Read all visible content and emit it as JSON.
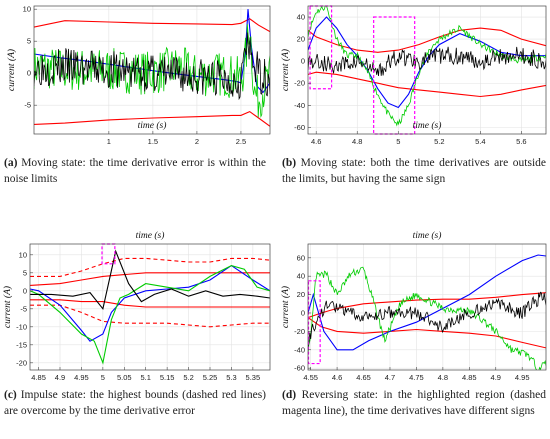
{
  "chart_data": [
    {
      "type": "line",
      "panel_id": "a",
      "caption_tag": "(a)",
      "caption": "Moving state: the time derivative error is within the noise limits",
      "xlabel": "time (s)",
      "ylabel": "current (A)",
      "xlim": [
        0.15,
        2.83
      ],
      "ylim": [
        -9.5,
        10.5
      ],
      "xticks": [
        1,
        1.5,
        2,
        2.5
      ],
      "xtick_labels": [
        "1",
        "1.5",
        "2",
        "2.5"
      ],
      "yticks": [
        -5,
        0,
        5,
        10
      ],
      "ytick_labels": [
        "-5",
        "0",
        "5",
        "10"
      ],
      "xlabel_pos": "inside-top",
      "grid": true,
      "series": [
        {
          "color": "#ff0000",
          "style": "solid",
          "x": [
            0.15,
            0.5,
            1.0,
            1.5,
            2.0,
            2.4,
            2.5,
            2.6,
            2.7,
            2.83
          ],
          "y": [
            7.2,
            8.2,
            8.0,
            7.8,
            7.7,
            7.6,
            7.8,
            8.5,
            7.5,
            6.5
          ]
        },
        {
          "color": "#ff0000",
          "style": "solid",
          "x": [
            0.15,
            0.5,
            1.0,
            1.5,
            2.0,
            2.4,
            2.5,
            2.6,
            2.7,
            2.83
          ],
          "y": [
            -8.0,
            -7.8,
            -7.3,
            -7.0,
            -6.8,
            -6.6,
            -6.6,
            -6.0,
            -7.0,
            -8.3
          ]
        },
        {
          "color": "#0000ff",
          "style": "solid",
          "x": [
            0.15,
            0.4,
            0.8,
            1.2,
            1.6,
            2.0,
            2.3,
            2.45,
            2.5,
            2.55,
            2.58,
            2.62,
            2.68,
            2.75,
            2.83
          ],
          "y": [
            3.0,
            2.5,
            1.8,
            1.0,
            0.2,
            -0.5,
            -1.0,
            -1.3,
            -1.5,
            3.0,
            10.0,
            4.0,
            -2.0,
            -3.0,
            -1.5
          ]
        },
        {
          "color": "#00cc00",
          "style": "solid",
          "noise_amp": 3.5,
          "seed": 7,
          "x": [
            0.15,
            0.5,
            1.0,
            1.5,
            1.8,
            2.0,
            2.2,
            2.4,
            2.5,
            2.55,
            2.6,
            2.65,
            2.7,
            2.83
          ],
          "y": [
            1.0,
            0.5,
            0.5,
            0.0,
            1.0,
            -0.5,
            0.0,
            -0.5,
            -1.0,
            2.0,
            8.0,
            -3.0,
            -4.0,
            -0.5
          ]
        },
        {
          "color": "#000000",
          "style": "solid",
          "noise_amp": 3.0,
          "seed": 3,
          "x": [
            0.15,
            0.5,
            1.0,
            1.5,
            2.0,
            2.4,
            2.5,
            2.55,
            2.6,
            2.7,
            2.83
          ],
          "y": [
            1.0,
            1.0,
            0.5,
            0.0,
            -0.5,
            -1.0,
            -1.0,
            4.0,
            3.0,
            0.0,
            -1.0
          ]
        }
      ],
      "highlights": []
    },
    {
      "type": "line",
      "panel_id": "b",
      "caption_tag": "(b)",
      "caption": "Moving state: both the time derivatives are outside the limits, but having the same sign",
      "xlabel": "time (s)",
      "ylabel": "current (A)",
      "xlim": [
        4.56,
        5.72
      ],
      "ylim": [
        -66,
        50
      ],
      "xticks": [
        4.6,
        4.8,
        5.0,
        5.2,
        5.4,
        5.6
      ],
      "xtick_labels": [
        "4.6",
        "4.8",
        "5",
        "5.2",
        "5.4",
        "5.6"
      ],
      "yticks": [
        -60,
        -40,
        -20,
        0,
        20,
        40
      ],
      "ytick_labels": [
        "-60",
        "-40",
        "-20",
        "0",
        "20",
        "40"
      ],
      "xlabel_pos": "inside-top",
      "grid": true,
      "series": [
        {
          "color": "#ff0000",
          "style": "solid",
          "x": [
            4.56,
            4.6,
            4.7,
            4.8,
            4.9,
            5.0,
            5.1,
            5.2,
            5.3,
            5.4,
            5.5,
            5.6,
            5.72
          ],
          "y": [
            28,
            22,
            15,
            10,
            8,
            10,
            15,
            22,
            28,
            30,
            28,
            20,
            14
          ]
        },
        {
          "color": "#ff0000",
          "style": "solid",
          "x": [
            4.56,
            4.6,
            4.7,
            4.8,
            4.9,
            5.0,
            5.1,
            5.2,
            5.3,
            5.4,
            5.5,
            5.6,
            5.72
          ],
          "y": [
            -12,
            -10,
            -12,
            -16,
            -20,
            -24,
            -26,
            -28,
            -30,
            -32,
            -30,
            -26,
            -22
          ]
        },
        {
          "color": "#0000ff",
          "style": "solid",
          "x": [
            4.56,
            4.6,
            4.65,
            4.7,
            4.75,
            4.8,
            4.85,
            4.9,
            4.95,
            5.0,
            5.05,
            5.1,
            5.15,
            5.2,
            5.3,
            5.4,
            5.5,
            5.6,
            5.72
          ],
          "y": [
            10,
            30,
            40,
            30,
            15,
            5,
            -8,
            -25,
            -38,
            -42,
            -30,
            -10,
            5,
            15,
            25,
            18,
            8,
            5,
            5
          ]
        },
        {
          "color": "#00cc00",
          "style": "solid",
          "noise_amp": 3.0,
          "seed": 11,
          "x": [
            4.56,
            4.6,
            4.65,
            4.7,
            4.75,
            4.8,
            4.85,
            4.9,
            4.95,
            5.0,
            5.05,
            5.1,
            5.15,
            5.2,
            5.3,
            5.4,
            5.5,
            5.6,
            5.72
          ],
          "y": [
            25,
            45,
            50,
            20,
            5,
            5,
            -10,
            -30,
            -48,
            -58,
            -40,
            -10,
            10,
            20,
            30,
            15,
            5,
            0,
            5
          ]
        },
        {
          "color": "#000000",
          "style": "solid",
          "noise_amp": 8.0,
          "seed": 5,
          "x": [
            4.56,
            4.6,
            4.7,
            4.8,
            4.9,
            5.0,
            5.1,
            5.2,
            5.3,
            5.4,
            5.5,
            5.6,
            5.72
          ],
          "y": [
            0,
            0,
            -5,
            0,
            -10,
            5,
            0,
            5,
            5,
            0,
            5,
            5,
            0
          ]
        }
      ],
      "highlights": [
        {
          "x0": 4.57,
          "x1": 4.675,
          "y0": -25,
          "y1": 50
        },
        {
          "x0": 4.88,
          "x1": 5.08,
          "y0": -66,
          "y1": 40
        }
      ]
    },
    {
      "type": "line",
      "panel_id": "c",
      "caption_tag": "(c)",
      "caption": "Impulse state: the highest bounds (dashed red lines) are overcome by the time derivative error",
      "xlabel": "time (s)",
      "ylabel": "current (A)",
      "xlim": [
        4.83,
        5.39
      ],
      "ylim": [
        -22,
        13
      ],
      "xticks": [
        4.85,
        4.9,
        4.95,
        5.0,
        5.05,
        5.1,
        5.15,
        5.2,
        5.25,
        5.3,
        5.35
      ],
      "xtick_labels": [
        "4.85",
        "4.9",
        "4.95",
        "5",
        "5.05",
        "5.1",
        "5.15",
        "5.2",
        "5.25",
        "5.3",
        "5.35"
      ],
      "yticks": [
        -20,
        -15,
        -10,
        -5,
        0,
        5,
        10
      ],
      "ytick_labels": [
        "-20",
        "-15",
        "-10",
        "-5",
        "0",
        "5",
        "10"
      ],
      "xlabel_pos": "above",
      "grid": true,
      "series": [
        {
          "color": "#ff0000",
          "style": "dashed",
          "x": [
            4.83,
            4.9,
            4.95,
            5.0,
            5.05,
            5.1,
            5.15,
            5.2,
            5.25,
            5.3,
            5.35,
            5.39
          ],
          "y": [
            4.0,
            4.0,
            5.5,
            7.5,
            9.0,
            9.0,
            8.5,
            8.0,
            8.0,
            9.0,
            9.0,
            8.5
          ]
        },
        {
          "color": "#ff0000",
          "style": "dashed",
          "x": [
            4.83,
            4.9,
            4.95,
            5.0,
            5.05,
            5.1,
            5.15,
            5.2,
            5.25,
            5.3,
            5.35,
            5.39
          ],
          "y": [
            -4.0,
            -4.0,
            -6.0,
            -8.5,
            -9.0,
            -9.0,
            -9.0,
            -9.5,
            -10.0,
            -9.5,
            -9.0,
            -9.0
          ]
        },
        {
          "color": "#ff0000",
          "style": "solid",
          "x": [
            4.83,
            4.9,
            4.95,
            5.0,
            5.05,
            5.1,
            5.2,
            5.3,
            5.39
          ],
          "y": [
            1.5,
            2.0,
            3.0,
            4.0,
            4.5,
            5.0,
            5.0,
            5.0,
            5.0
          ]
        },
        {
          "color": "#ff0000",
          "style": "solid",
          "x": [
            4.83,
            4.9,
            4.95,
            5.0,
            5.05,
            5.1,
            5.2,
            5.3,
            5.39
          ],
          "y": [
            -2.5,
            -2.5,
            -3.0,
            -3.0,
            -4.0,
            -4.5,
            -4.5,
            -4.5,
            -4.5
          ]
        },
        {
          "color": "#0000ff",
          "style": "solid",
          "x": [
            4.83,
            4.85,
            4.9,
            4.95,
            4.97,
            5.0,
            5.02,
            5.05,
            5.1,
            5.15,
            5.2,
            5.25,
            5.3,
            5.35,
            5.39
          ],
          "y": [
            0.5,
            0.0,
            -4.0,
            -11.0,
            -14.0,
            -12.0,
            -6.0,
            -2.0,
            0.0,
            0.5,
            1.0,
            3.0,
            7.0,
            3.0,
            0.0
          ]
        },
        {
          "color": "#00cc00",
          "style": "solid",
          "x": [
            4.83,
            4.85,
            4.9,
            4.95,
            4.98,
            5.0,
            5.02,
            5.04,
            5.06,
            5.1,
            5.15,
            5.2,
            5.25,
            5.3,
            5.33,
            5.36,
            5.39
          ],
          "y": [
            0.0,
            -1.0,
            -6.0,
            -12.0,
            -14.0,
            -20.0,
            -8.0,
            -2.0,
            -1.0,
            2.0,
            1.0,
            0.0,
            4.0,
            7.0,
            6.0,
            1.0,
            0.0
          ]
        },
        {
          "color": "#000000",
          "style": "solid",
          "x": [
            4.83,
            4.88,
            4.93,
            4.97,
            5.0,
            5.03,
            5.06,
            5.09,
            5.12,
            5.16,
            5.2,
            5.24,
            5.28,
            5.32,
            5.36,
            5.39
          ],
          "y": [
            -1.0,
            -1.0,
            -1.5,
            -0.5,
            -5.0,
            11.0,
            2.0,
            -3.0,
            -1.0,
            0.5,
            -1.5,
            0.0,
            -1.5,
            -1.0,
            -1.5,
            -2.0
          ]
        }
      ],
      "highlights": [
        {
          "x0": 4.998,
          "x1": 5.028,
          "y0": 7.5,
          "y1": 13
        }
      ]
    },
    {
      "type": "line",
      "panel_id": "d",
      "caption_tag": "(d)",
      "caption": "Reversing state: in the highlighted region (dashed magenta line), the time derivatives have different signs",
      "xlabel": "time (s)",
      "ylabel": "current (A)",
      "xlim": [
        4.545,
        4.995
      ],
      "ylim": [
        -62,
        75
      ],
      "xticks": [
        4.55,
        4.6,
        4.65,
        4.7,
        4.75,
        4.8,
        4.85,
        4.9,
        4.95
      ],
      "xtick_labels": [
        "4.55",
        "4.6",
        "4.65",
        "4.7",
        "4.75",
        "4.8",
        "4.85",
        "4.9",
        "4.95"
      ],
      "yticks": [
        -60,
        -40,
        -20,
        0,
        20,
        40,
        60
      ],
      "ytick_labels": [
        "-60",
        "-40",
        "-20",
        "0",
        "20",
        "40",
        "60"
      ],
      "xlabel_pos": "above",
      "grid": true,
      "series": [
        {
          "color": "#ff0000",
          "style": "solid",
          "x": [
            4.545,
            4.57,
            4.6,
            4.65,
            4.7,
            4.75,
            4.8,
            4.85,
            4.9,
            4.95,
            4.995
          ],
          "y": [
            -5,
            0,
            5,
            10,
            12,
            14,
            15,
            15,
            17,
            20,
            22
          ]
        },
        {
          "color": "#ff0000",
          "style": "solid",
          "x": [
            4.545,
            4.57,
            4.6,
            4.65,
            4.7,
            4.75,
            4.8,
            4.85,
            4.9,
            4.95,
            4.995
          ],
          "y": [
            -5,
            -15,
            -20,
            -22,
            -20,
            -18,
            -20,
            -22,
            -25,
            -32,
            -38
          ]
        },
        {
          "color": "#0000ff",
          "style": "solid",
          "x": [
            4.545,
            4.555,
            4.565,
            4.575,
            4.6,
            4.63,
            4.66,
            4.7,
            4.75,
            4.8,
            4.85,
            4.9,
            4.95,
            4.98,
            4.995
          ],
          "y": [
            0,
            20,
            0,
            -20,
            -40,
            -40,
            -30,
            -20,
            -10,
            5,
            20,
            40,
            57,
            63,
            62
          ]
        },
        {
          "color": "#00cc00",
          "style": "solid",
          "noise_amp": 4.0,
          "seed": 13,
          "x": [
            4.545,
            4.55,
            4.56,
            4.58,
            4.6,
            4.625,
            4.65,
            4.67,
            4.69,
            4.72,
            4.75,
            4.8,
            4.85,
            4.88,
            4.9,
            4.93,
            4.96,
            4.98,
            4.995
          ],
          "y": [
            -40,
            -30,
            40,
            42,
            20,
            42,
            48,
            10,
            -30,
            10,
            20,
            5,
            2,
            -10,
            -20,
            -40,
            -45,
            -60,
            -55
          ]
        },
        {
          "color": "#000000",
          "style": "solid",
          "noise_amp": 7.0,
          "seed": 9,
          "x": [
            4.545,
            4.56,
            4.58,
            4.62,
            4.66,
            4.7,
            4.75,
            4.8,
            4.85,
            4.9,
            4.95,
            4.99,
            4.995
          ],
          "y": [
            -30,
            -10,
            10,
            0,
            -5,
            0,
            0,
            -15,
            0,
            10,
            0,
            20,
            10
          ]
        }
      ],
      "highlights": [
        {
          "x0": 4.546,
          "x1": 4.568,
          "y0": -55,
          "y1": 35
        }
      ]
    }
  ]
}
